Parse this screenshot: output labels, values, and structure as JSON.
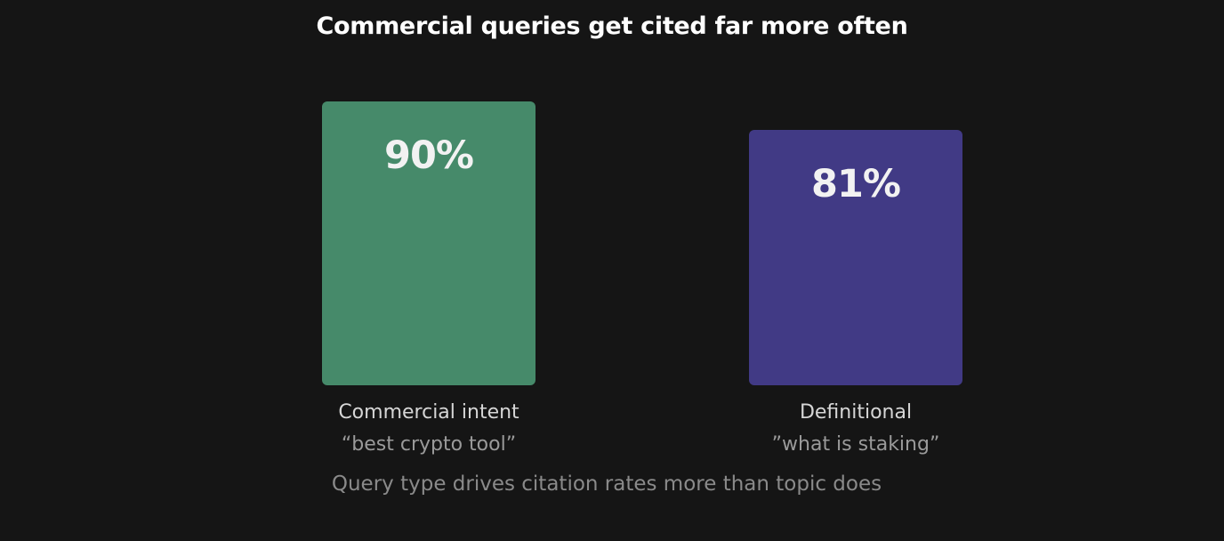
{
  "chart_data": {
    "type": "bar",
    "title": "Commercial queries get cited far more often",
    "categories": [
      "Commercial intent",
      "Definitional"
    ],
    "examples": [
      "“best crypto tool”",
      "”what is staking”"
    ],
    "values": [
      90,
      81
    ],
    "value_labels": [
      "90%",
      "81%"
    ],
    "colors": [
      "#468A6A",
      "#413A85"
    ],
    "ylim": [
      0,
      100
    ],
    "grid": false,
    "caption": "Query type drives citation rates more than topic does"
  }
}
